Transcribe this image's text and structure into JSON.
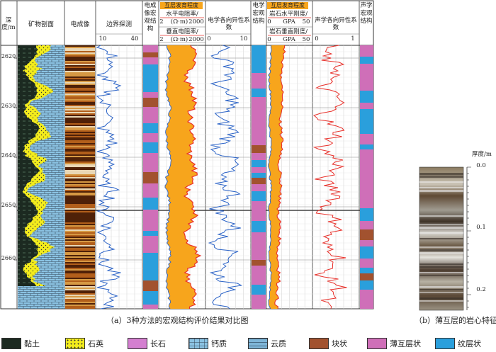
{
  "header": {
    "depth_label": "深度/m",
    "mineral_profile": "矿物剖面",
    "electric_image": "电成像",
    "boundary_detection": "边界探测",
    "boundary_min": "10",
    "boundary_max": "40",
    "ei_macro_structure": "电成像宏观结构",
    "interlayer_degree_1": "互层发育程度",
    "h_resistivity": "水平电阻率/",
    "h_res_range": [
      "2",
      "(Ω·m)",
      "2000"
    ],
    "v_resistivity": "垂直电阻率/",
    "v_res_range": [
      "2",
      "(Ω·m)",
      "2000"
    ],
    "elec_anisotropy": "电学各向异性系数",
    "elec_aniso_min": "0",
    "elec_aniso_max": "10",
    "elec_macro_structure": "电学宏观结构",
    "interlayer_degree_2": "互层发育程度",
    "h_stiffness": "岩石水平刚度/",
    "h_stiff_range": [
      "0",
      "GPA",
      "50"
    ],
    "v_stiffness": "岩石垂直刚度/",
    "v_stiff_range": [
      "0",
      "GPA",
      "50"
    ],
    "acoustic_anisotropy": "声学各向异性系数",
    "ac_aniso_min": "0",
    "ac_aniso_max": "1",
    "acoustic_macro_structure": "声学宏观结构"
  },
  "depth_ticks": [
    "2620",
    "2630",
    "2640",
    "2650",
    "2660"
  ],
  "core": {
    "thickness_label": "厚度/m",
    "ticks": [
      "0.0",
      "0.1",
      "0.2"
    ]
  },
  "captions": {
    "a": "（a）3种方法的宏观结构评价结果对比图",
    "b": "（b）薄互层的岩心特征"
  },
  "legend": [
    {
      "label": "黏土",
      "pattern": "clay"
    },
    {
      "label": "石英",
      "pattern": "quartz"
    },
    {
      "label": "长石",
      "pattern": "feldspar"
    },
    {
      "label": "钙质",
      "pattern": "calcite"
    },
    {
      "label": "云质",
      "pattern": "dolomite"
    },
    {
      "label": "块状",
      "pattern": "massive"
    },
    {
      "label": "薄互层状",
      "pattern": "thin"
    },
    {
      "label": "纹层状",
      "pattern": "laminated"
    }
  ],
  "colors": {
    "clay": "#1c2a21",
    "quartz": "#f3ec1c",
    "feldspar": "#d47fd0",
    "calcite": "#8bc3e3",
    "massive": "#a2522f",
    "thin": "#cf6fb8",
    "laminated": "#2a9fdc",
    "orange_fill": "#f7a51c",
    "resistivity_red": "#e8302a",
    "blue_curve": "#2b63c7"
  }
}
